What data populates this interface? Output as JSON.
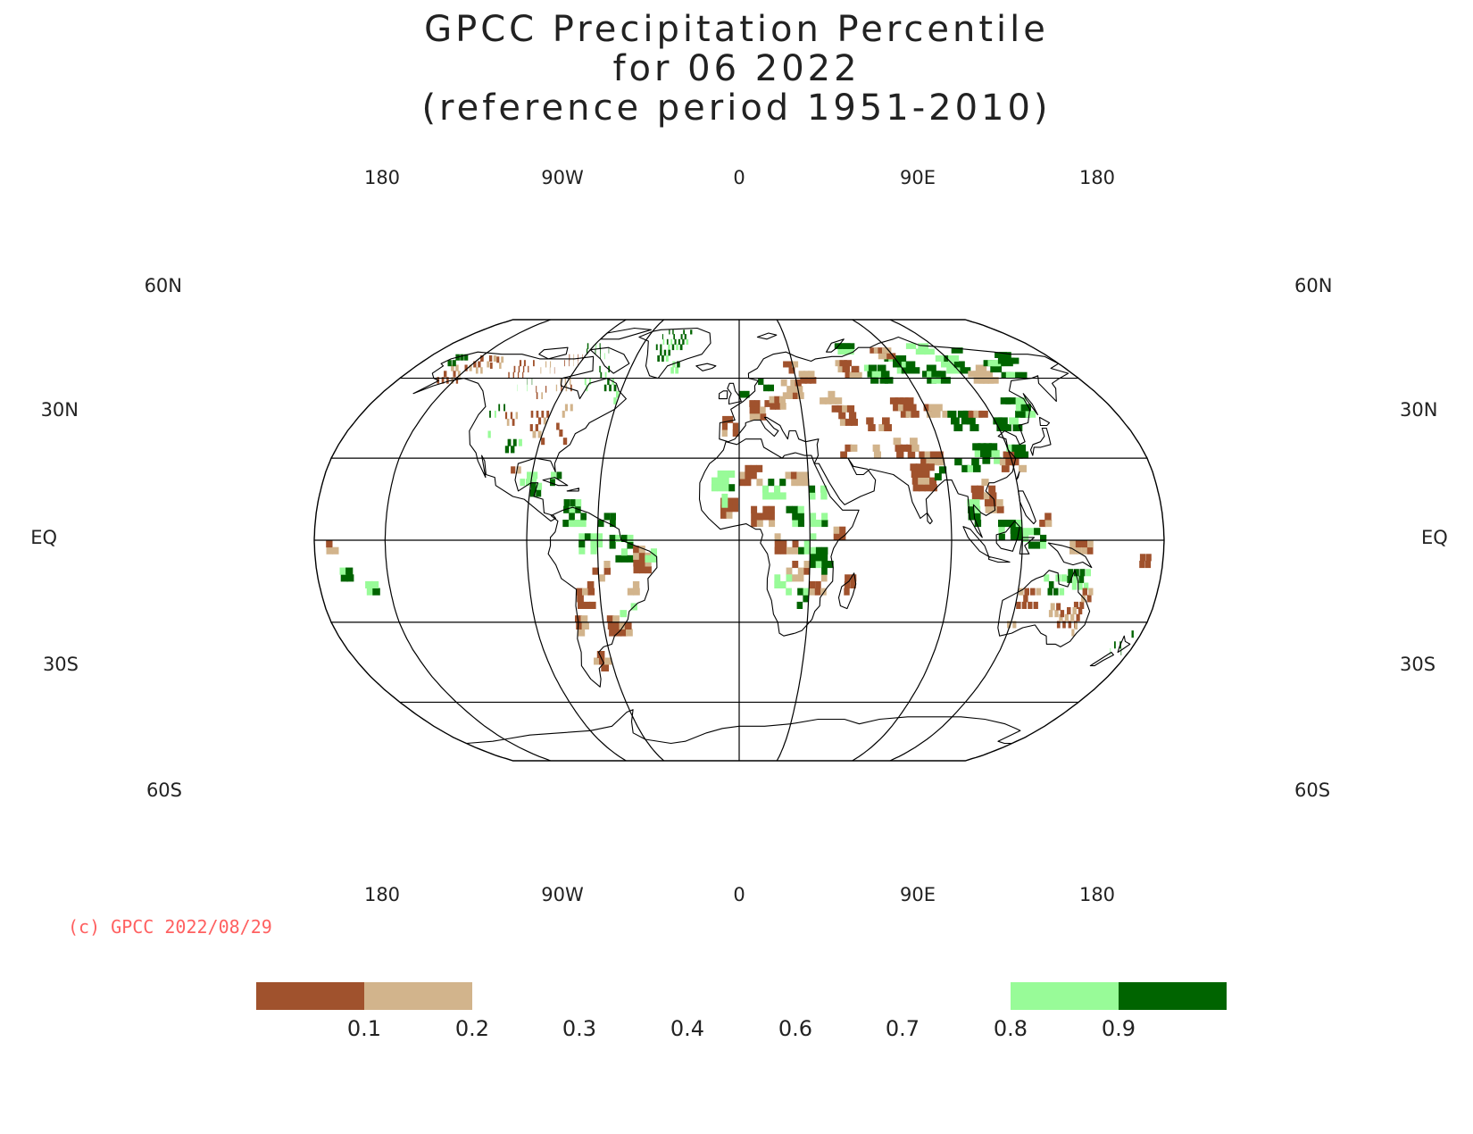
{
  "title": {
    "line1": "GPCC Precipitation Percentile",
    "line2": "for 06 2022",
    "line3": "(reference period 1951-2010)"
  },
  "projection": "Robinson",
  "longitude_labels": [
    "180",
    "90W",
    "0",
    "90E",
    "180"
  ],
  "latitude_labels": {
    "lat60n": "60N",
    "lat30n": "30N",
    "eq": "EQ",
    "lat30s": "30S",
    "lat60s": "60S"
  },
  "copyright": "(c) GPCC 2022/08/29",
  "colors": {
    "below_0_1": "#a0522d",
    "range_0_1_0_2": "#d2b48c",
    "range_0_8_0_9": "#98fb98",
    "above_0_9": "#006400",
    "copyright": "#ff6060"
  },
  "legend": {
    "tick_labels": [
      "0.1",
      "0.2",
      "0.3",
      "0.4",
      "0.6",
      "0.7",
      "0.8",
      "0.9"
    ],
    "classes": [
      {
        "range": "<0.1",
        "color": "#a0522d"
      },
      {
        "range": "0.1-0.2",
        "color": "#d2b48c"
      },
      {
        "range": "0.2-0.8",
        "color": "#ffffff"
      },
      {
        "range": "0.8-0.9",
        "color": "#98fb98"
      },
      {
        "range": ">0.9",
        "color": "#006400"
      }
    ]
  }
}
